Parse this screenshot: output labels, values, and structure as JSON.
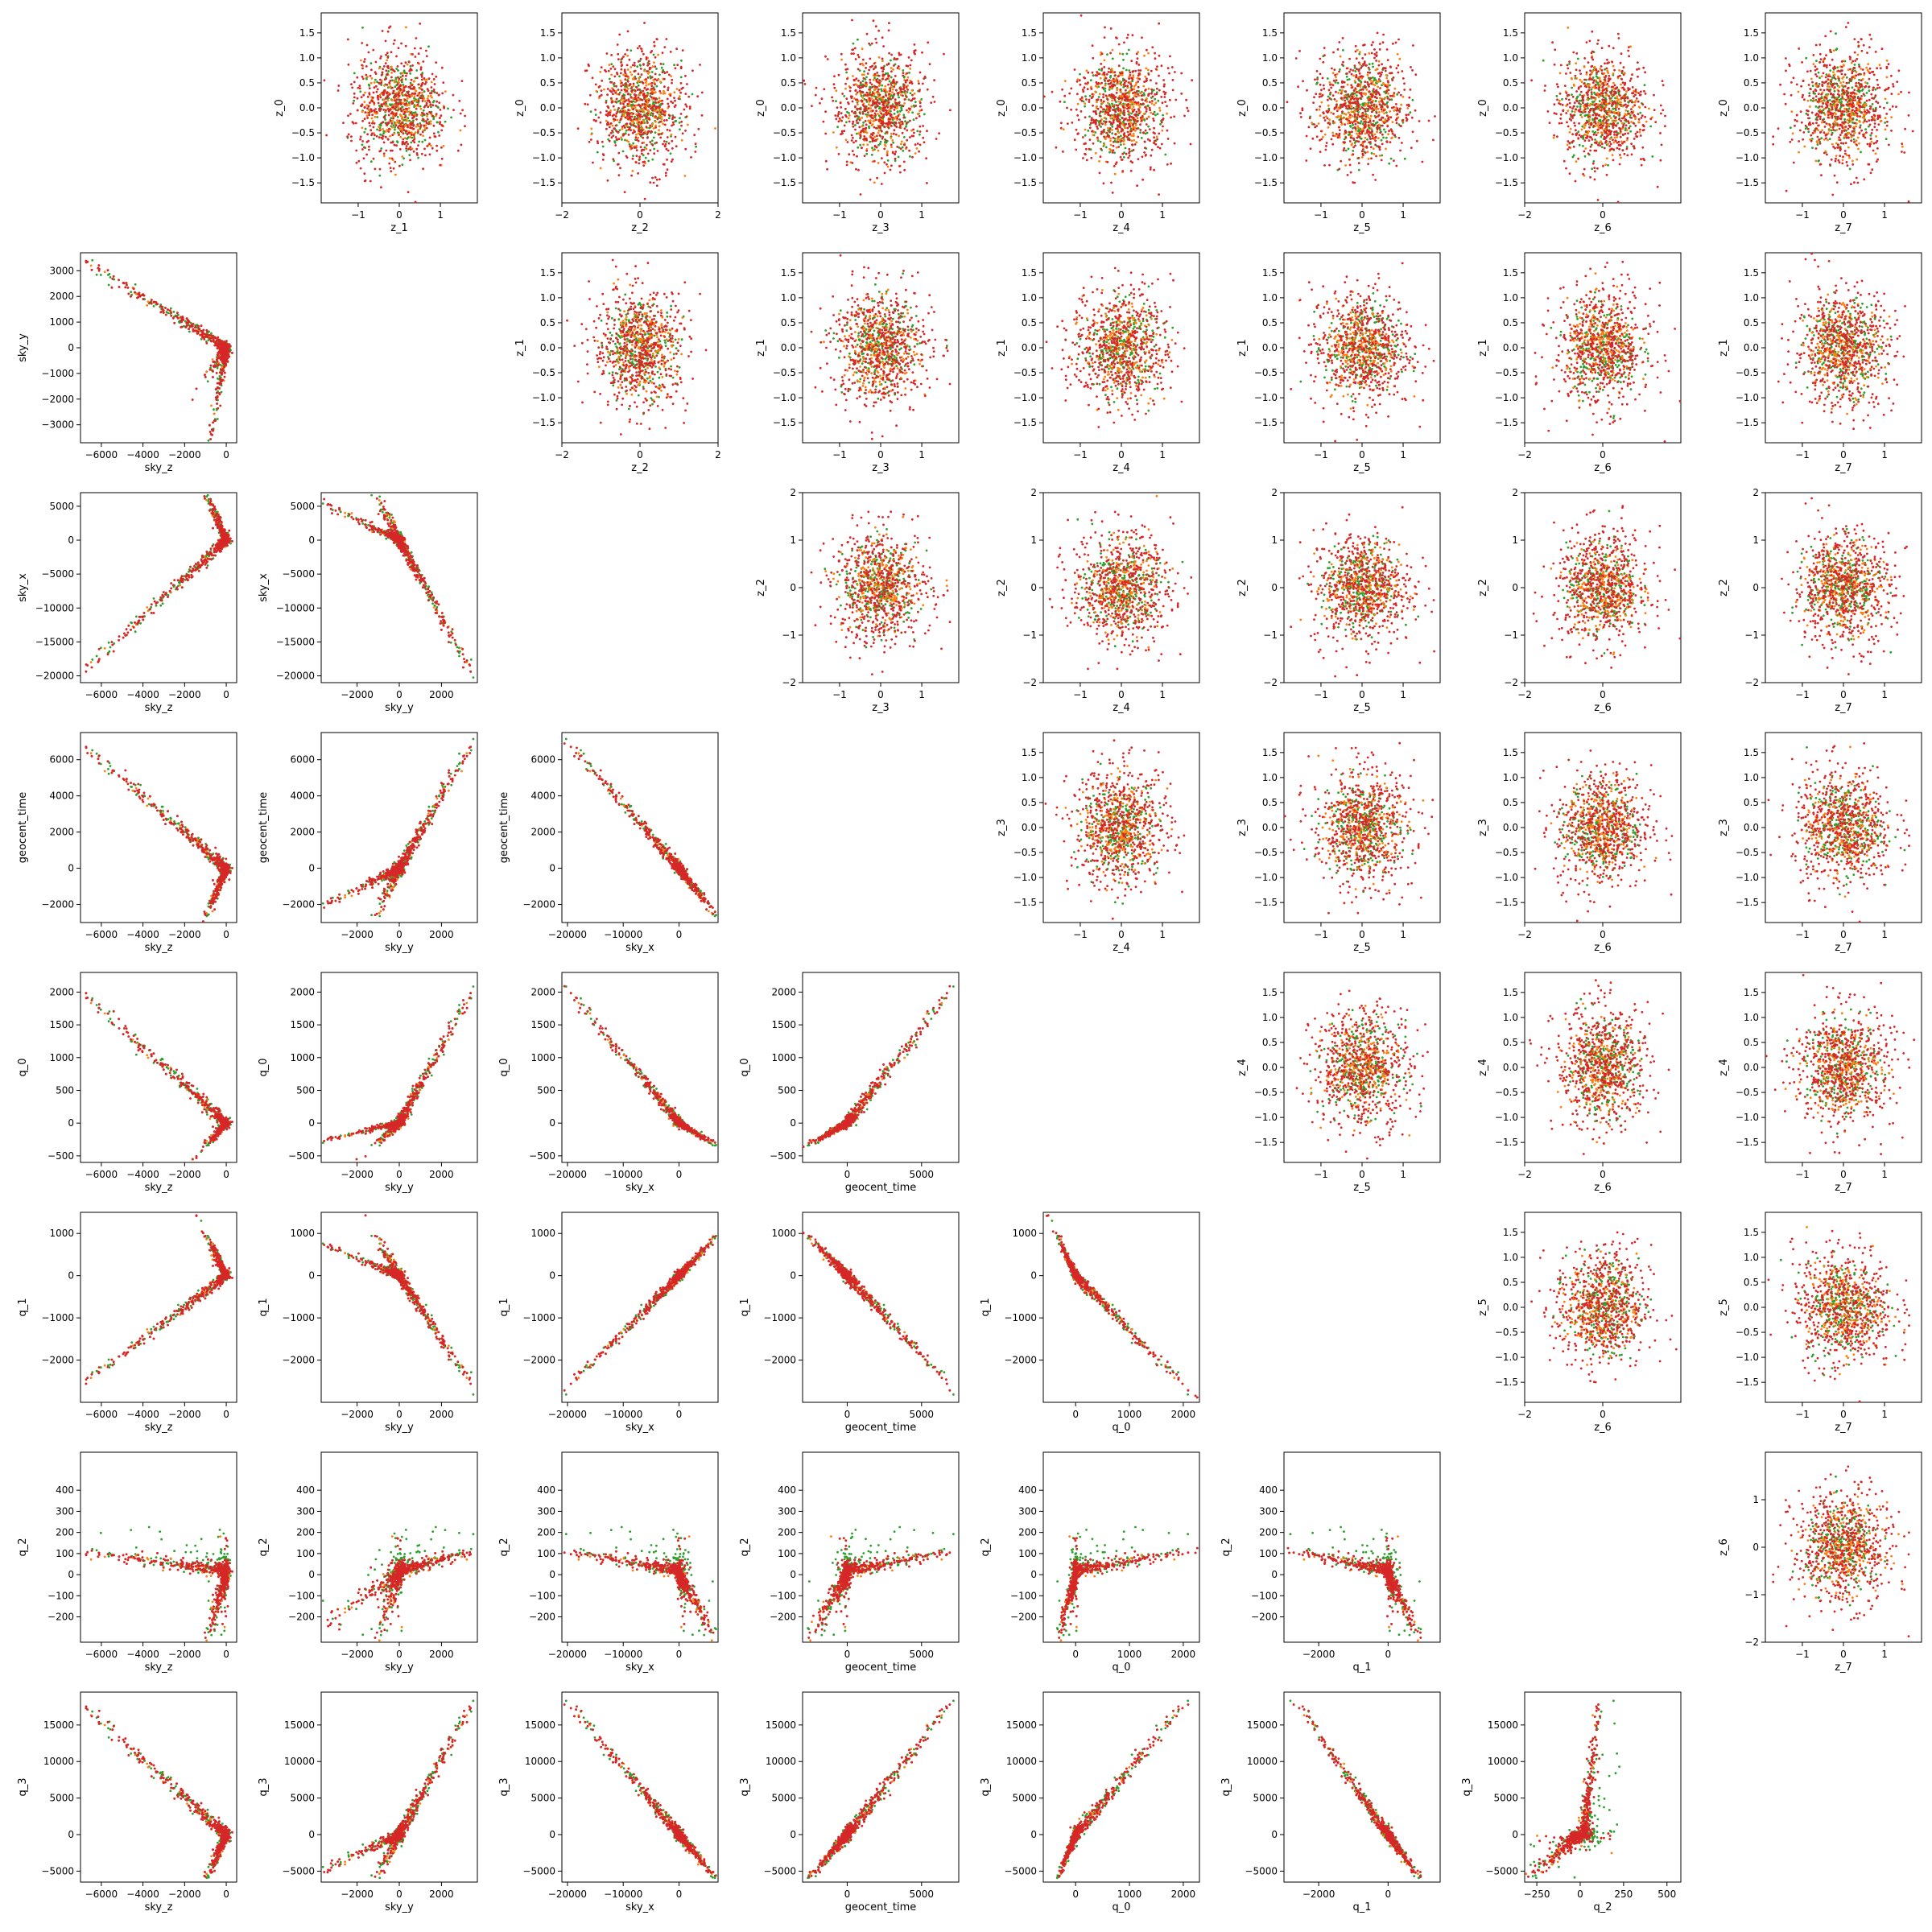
{
  "figure": {
    "layout": "corner-pair-plot",
    "grid_size": 8,
    "series_colors": [
      "#2ca02c",
      "#ff7f0e",
      "#d62728"
    ],
    "point_counts_per_series": [
      500,
      500,
      1600
    ]
  },
  "chart_data": {
    "type": "scatter",
    "description_kind": "pair plot matrix of posterior samples",
    "lower_triangle": {
      "row_labels": [
        "sky_y",
        "sky_x",
        "geocent_time",
        "q_0",
        "q_1",
        "q_2",
        "q_3"
      ],
      "col_labels": [
        "sky_z",
        "sky_y",
        "sky_x",
        "geocent_time",
        "q_0",
        "q_1",
        "q_2"
      ],
      "ranges": {
        "sky_z": [
          -7000,
          500
        ],
        "sky_y": [
          -3700,
          3700
        ],
        "sky_x": [
          -21000,
          7000
        ],
        "geocent_time": [
          -3000,
          7500
        ],
        "q_0": [
          -600,
          2300
        ],
        "q_1": [
          -3000,
          1500
        ],
        "q_2": [
          -320,
          580
        ],
        "q_3": [
          -6500,
          19500
        ]
      },
      "ticks": {
        "sky_z": [
          -6000,
          -4000,
          -2000,
          0
        ],
        "sky_y": [
          -2000,
          0,
          2000
        ],
        "sky_x": [
          -20000,
          -10000,
          0
        ],
        "geocent_time": [
          0,
          5000
        ],
        "q_0": [
          0,
          1000,
          2000
        ],
        "q_1": [
          -2000,
          0
        ],
        "q_2": [
          -250,
          0,
          250,
          500
        ],
        "q_3": [
          -5000,
          0,
          5000,
          10000,
          15000
        ]
      },
      "row_ticks": {
        "sky_y": [
          -3000,
          -2000,
          -1000,
          0,
          1000,
          2000,
          3000
        ],
        "sky_x": [
          -20000,
          -15000,
          -10000,
          -5000,
          0,
          5000
        ],
        "geocent_time": [
          -2000,
          0,
          2000,
          4000,
          6000
        ],
        "q_0": [
          -500,
          0,
          500,
          1000,
          1500,
          2000
        ],
        "q_1": [
          -2000,
          -1000,
          0,
          1000
        ],
        "q_2": [
          -200,
          -100,
          0,
          100,
          200,
          300,
          400
        ],
        "q_3": [
          -5000,
          0,
          5000,
          10000,
          15000
        ]
      },
      "min_ordering_for_label_q_1": [
        -2000,
        -1000,
        0,
        1000
      ]
    },
    "upper_triangle": {
      "row_labels": [
        "z_0",
        "z_1",
        "z_2",
        "z_3",
        "z_4",
        "z_5",
        "z_6"
      ],
      "col_labels": [
        "z_1",
        "z_2",
        "z_3",
        "z_4",
        "z_5",
        "z_6",
        "z_7"
      ],
      "ranges": {
        "z_0": [
          -1.9,
          1.9
        ],
        "z_1": [
          -1.9,
          1.9
        ],
        "z_2": [
          -2.0,
          2.0
        ],
        "z_3": [
          -1.9,
          1.9
        ],
        "z_4": [
          -1.9,
          1.9
        ],
        "z_5": [
          -1.9,
          1.9
        ],
        "z_6": [
          -2.0,
          2.0
        ],
        "z_7": [
          -1.9,
          1.9
        ]
      },
      "row_ticks": {
        "z_0": [
          "-1.5",
          "-1.0",
          "-0.5",
          "0.0",
          "0.5",
          "1.0",
          "1.5"
        ],
        "z_1": [
          "-1.5",
          "-1.0",
          "-0.5",
          "0.0",
          "0.5",
          "1.0",
          "1.5"
        ],
        "z_2": [
          "-2",
          "-1",
          "0",
          "1",
          "2"
        ],
        "z_3": [
          "-1.5",
          "-1.0",
          "-0.5",
          "0.0",
          "0.5",
          "1.0",
          "1.5"
        ],
        "z_4": [
          "-1.5",
          "-1.0",
          "-0.5",
          "0.0",
          "0.5",
          "1.0",
          "1.5"
        ],
        "z_5": [
          "-1.5",
          "-1.0",
          "-0.5",
          "0.0",
          "0.5",
          "1.0",
          "1.5"
        ],
        "z_6": [
          "-2",
          "-1",
          "0",
          "1"
        ]
      },
      "col_ticks": {
        "z_1": [
          "-1",
          "0",
          "1"
        ],
        "z_2": [
          "-2",
          "0",
          "2"
        ],
        "z_3": [
          "-1",
          "0",
          "1"
        ],
        "z_4": [
          "-1",
          "0",
          "1"
        ],
        "z_5": [
          "-1",
          "0",
          "1"
        ],
        "z_6": [
          "-2",
          "0"
        ],
        "z_7": [
          "-1",
          "0",
          "1"
        ]
      }
    }
  }
}
